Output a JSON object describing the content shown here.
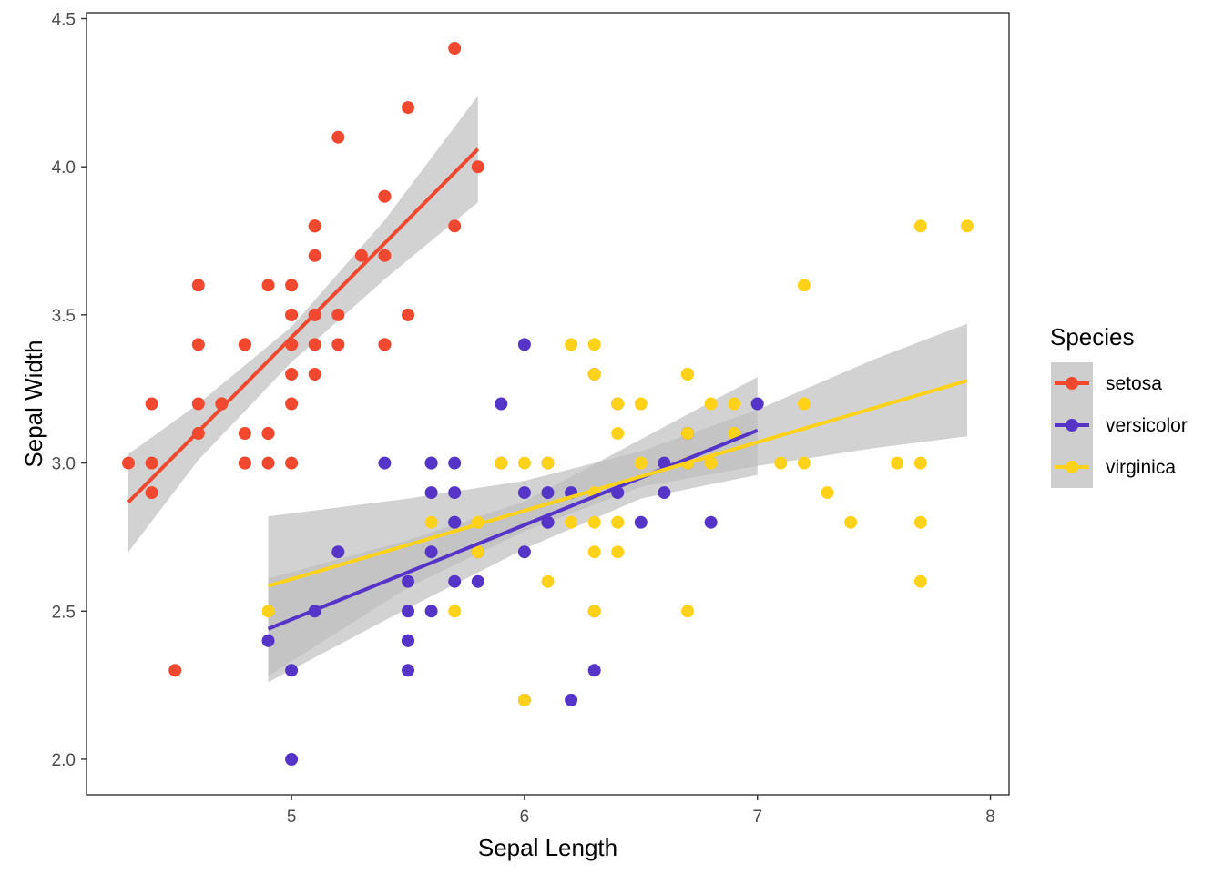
{
  "chart_data": {
    "type": "scatter",
    "title": "",
    "xlabel": "Sepal Length",
    "ylabel": "Sepal Width",
    "xlim": [
      4.12,
      8.08
    ],
    "ylim": [
      1.88,
      4.52
    ],
    "xticks": [
      5,
      6,
      7,
      8
    ],
    "yticks": [
      2.0,
      2.5,
      3.0,
      3.5,
      4.0,
      4.5
    ],
    "xtick_labels": [
      "5",
      "6",
      "7",
      "8"
    ],
    "ytick_labels": [
      "2.0",
      "2.5",
      "3.0",
      "3.5",
      "4.0",
      "4.5"
    ],
    "grid": false,
    "legend": {
      "title": "Species",
      "position": "right"
    },
    "confidence_band_color": "#bdbdbd",
    "series": [
      {
        "name": "setosa",
        "color": "#f2482f",
        "points": [
          [
            5.1,
            3.5
          ],
          [
            4.9,
            3.0
          ],
          [
            4.7,
            3.2
          ],
          [
            4.6,
            3.1
          ],
          [
            5.0,
            3.6
          ],
          [
            5.4,
            3.9
          ],
          [
            4.6,
            3.4
          ],
          [
            5.0,
            3.4
          ],
          [
            4.4,
            2.9
          ],
          [
            4.9,
            3.1
          ],
          [
            5.4,
            3.7
          ],
          [
            4.8,
            3.4
          ],
          [
            4.8,
            3.0
          ],
          [
            4.3,
            3.0
          ],
          [
            5.8,
            4.0
          ],
          [
            5.7,
            4.4
          ],
          [
            5.4,
            3.9
          ],
          [
            5.1,
            3.5
          ],
          [
            5.7,
            3.8
          ],
          [
            5.1,
            3.8
          ],
          [
            5.4,
            3.4
          ],
          [
            5.1,
            3.7
          ],
          [
            4.6,
            3.6
          ],
          [
            5.1,
            3.3
          ],
          [
            4.8,
            3.4
          ],
          [
            5.0,
            3.0
          ],
          [
            5.0,
            3.4
          ],
          [
            5.2,
            3.5
          ],
          [
            5.2,
            3.4
          ],
          [
            4.7,
            3.2
          ],
          [
            4.8,
            3.1
          ],
          [
            5.4,
            3.4
          ],
          [
            5.2,
            4.1
          ],
          [
            5.5,
            4.2
          ],
          [
            4.9,
            3.1
          ],
          [
            5.0,
            3.2
          ],
          [
            5.5,
            3.5
          ],
          [
            4.9,
            3.6
          ],
          [
            4.4,
            3.0
          ],
          [
            5.1,
            3.4
          ],
          [
            5.0,
            3.5
          ],
          [
            4.5,
            2.3
          ],
          [
            4.4,
            3.2
          ],
          [
            5.0,
            3.5
          ],
          [
            5.1,
            3.8
          ],
          [
            4.8,
            3.0
          ],
          [
            5.1,
            3.8
          ],
          [
            4.6,
            3.2
          ],
          [
            5.3,
            3.7
          ],
          [
            5.0,
            3.3
          ]
        ],
        "fit": {
          "x": [
            4.3,
            5.8
          ],
          "y": [
            2.868,
            4.06
          ]
        },
        "band": {
          "x": [
            4.3,
            4.6,
            5.0,
            5.4,
            5.8
          ],
          "lower": [
            2.7,
            3.01,
            3.34,
            3.62,
            3.88
          ],
          "upper": [
            3.03,
            3.2,
            3.46,
            3.82,
            4.24
          ]
        }
      },
      {
        "name": "versicolor",
        "color": "#5535c8",
        "points": [
          [
            7.0,
            3.2
          ],
          [
            6.4,
            3.2
          ],
          [
            6.9,
            3.1
          ],
          [
            5.5,
            2.3
          ],
          [
            6.5,
            2.8
          ],
          [
            5.7,
            2.8
          ],
          [
            6.3,
            3.3
          ],
          [
            4.9,
            2.4
          ],
          [
            6.6,
            2.9
          ],
          [
            5.2,
            2.7
          ],
          [
            5.0,
            2.0
          ],
          [
            5.9,
            3.0
          ],
          [
            6.0,
            2.2
          ],
          [
            6.1,
            2.9
          ],
          [
            5.6,
            2.9
          ],
          [
            6.7,
            3.1
          ],
          [
            5.6,
            3.0
          ],
          [
            5.8,
            2.7
          ],
          [
            6.2,
            2.2
          ],
          [
            5.6,
            2.5
          ],
          [
            5.9,
            3.2
          ],
          [
            6.1,
            2.8
          ],
          [
            6.3,
            2.5
          ],
          [
            6.1,
            2.8
          ],
          [
            6.4,
            2.9
          ],
          [
            6.6,
            3.0
          ],
          [
            6.8,
            2.8
          ],
          [
            6.7,
            3.0
          ],
          [
            6.0,
            2.9
          ],
          [
            5.7,
            2.6
          ],
          [
            5.5,
            2.4
          ],
          [
            5.5,
            2.4
          ],
          [
            5.8,
            2.7
          ],
          [
            6.0,
            2.7
          ],
          [
            5.4,
            3.0
          ],
          [
            6.0,
            3.4
          ],
          [
            6.7,
            3.1
          ],
          [
            6.3,
            2.3
          ],
          [
            5.6,
            3.0
          ],
          [
            5.5,
            2.5
          ],
          [
            5.5,
            2.6
          ],
          [
            6.1,
            3.0
          ],
          [
            5.8,
            2.6
          ],
          [
            5.0,
            2.3
          ],
          [
            5.6,
            2.7
          ],
          [
            5.7,
            3.0
          ],
          [
            5.7,
            2.9
          ],
          [
            6.2,
            2.9
          ],
          [
            5.1,
            2.5
          ],
          [
            5.7,
            2.8
          ]
        ],
        "fit": {
          "x": [
            4.9,
            7.0
          ],
          "y": [
            2.44,
            3.11
          ]
        },
        "band": {
          "x": [
            4.9,
            5.5,
            6.0,
            6.5,
            7.0
          ],
          "lower": [
            2.26,
            2.51,
            2.71,
            2.88,
            2.96
          ],
          "upper": [
            2.61,
            2.74,
            2.87,
            3.08,
            3.29
          ]
        }
      },
      {
        "name": "virginica",
        "color": "#ffd21a",
        "points": [
          [
            6.3,
            3.3
          ],
          [
            5.8,
            2.7
          ],
          [
            7.1,
            3.0
          ],
          [
            6.3,
            2.9
          ],
          [
            6.5,
            3.0
          ],
          [
            7.6,
            3.0
          ],
          [
            4.9,
            2.5
          ],
          [
            7.3,
            2.9
          ],
          [
            6.7,
            2.5
          ],
          [
            7.2,
            3.6
          ],
          [
            6.5,
            3.2
          ],
          [
            6.4,
            2.7
          ],
          [
            6.8,
            3.0
          ],
          [
            5.7,
            2.5
          ],
          [
            5.8,
            2.8
          ],
          [
            6.4,
            3.2
          ],
          [
            6.5,
            3.0
          ],
          [
            7.7,
            3.8
          ],
          [
            7.7,
            2.6
          ],
          [
            6.0,
            2.2
          ],
          [
            6.9,
            3.2
          ],
          [
            5.6,
            2.8
          ],
          [
            7.7,
            2.8
          ],
          [
            6.3,
            2.7
          ],
          [
            6.7,
            3.3
          ],
          [
            7.2,
            3.2
          ],
          [
            6.2,
            2.8
          ],
          [
            6.1,
            3.0
          ],
          [
            6.4,
            2.8
          ],
          [
            7.2,
            3.0
          ],
          [
            7.4,
            2.8
          ],
          [
            7.9,
            3.8
          ],
          [
            6.4,
            2.8
          ],
          [
            6.3,
            2.8
          ],
          [
            6.1,
            2.6
          ],
          [
            7.7,
            3.0
          ],
          [
            6.3,
            3.4
          ],
          [
            6.4,
            3.1
          ],
          [
            6.0,
            3.0
          ],
          [
            6.9,
            3.1
          ],
          [
            6.7,
            3.1
          ],
          [
            6.9,
            3.1
          ],
          [
            5.8,
            2.7
          ],
          [
            6.8,
            3.2
          ],
          [
            6.7,
            3.3
          ],
          [
            6.7,
            3.0
          ],
          [
            6.3,
            2.5
          ],
          [
            6.5,
            3.0
          ],
          [
            6.2,
            3.4
          ],
          [
            5.9,
            3.0
          ]
        ],
        "fit": {
          "x": [
            4.9,
            7.9
          ],
          "y": [
            2.585,
            3.278
          ]
        },
        "band": {
          "x": [
            4.9,
            5.5,
            6.0,
            6.5,
            7.0,
            7.5,
            7.9
          ],
          "lower": [
            2.28,
            2.58,
            2.77,
            2.92,
            2.99,
            3.05,
            3.09
          ],
          "upper": [
            2.82,
            2.88,
            2.94,
            3.04,
            3.18,
            3.35,
            3.47
          ]
        }
      }
    ]
  }
}
